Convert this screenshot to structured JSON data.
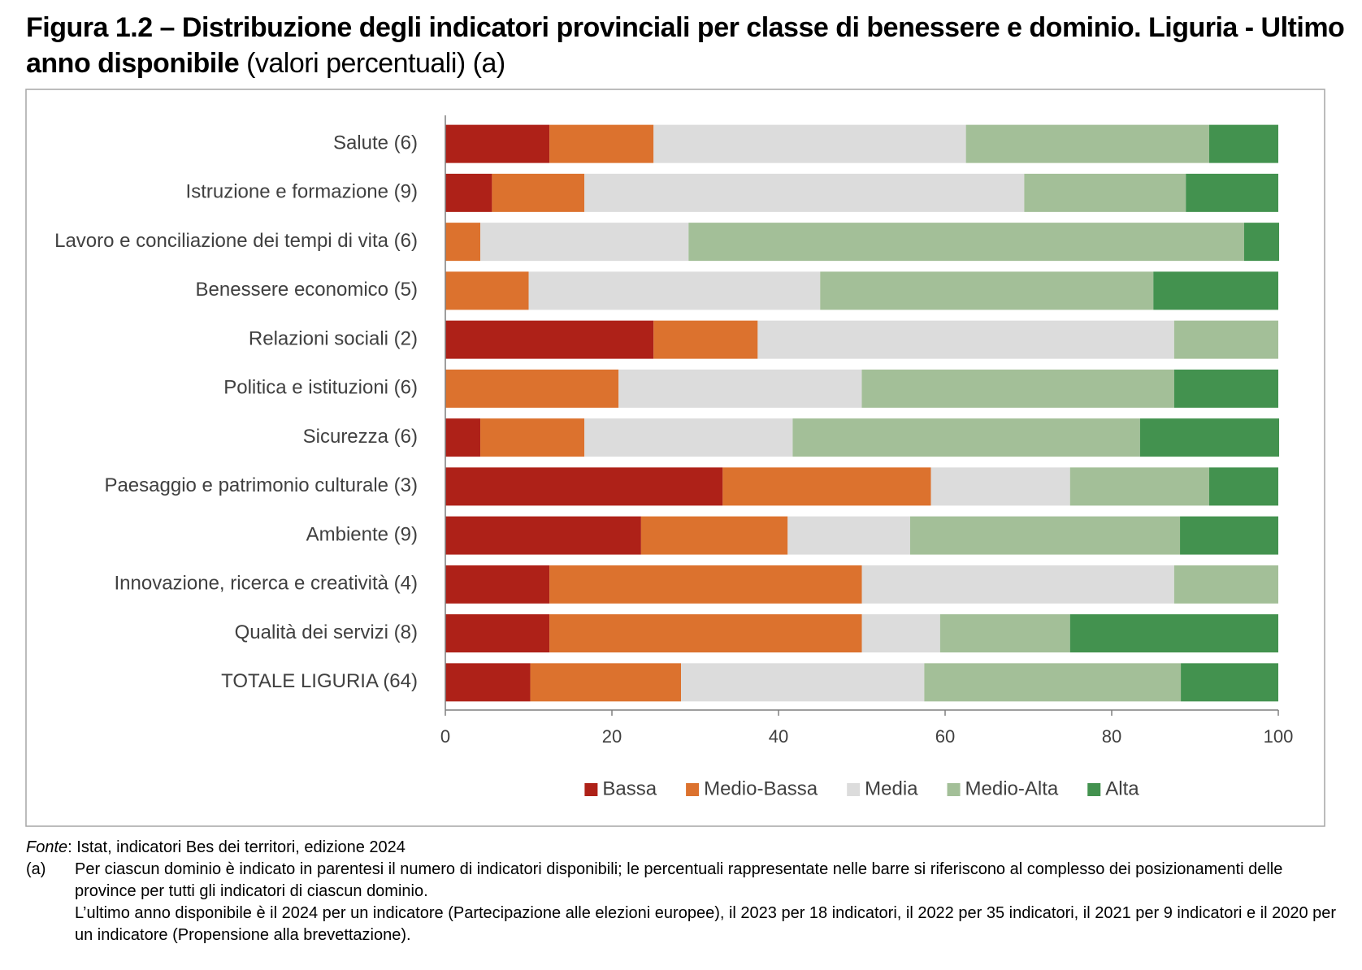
{
  "chart_data": {
    "type": "bar",
    "orientation": "horizontal",
    "stacked": true,
    "title": "Figura 1.2 – Distribuzione degli indicatori provinciali per classe di benessere e dominio. Liguria - Ultimo anno disponibile",
    "subtitle": "(valori percentuali) (a)",
    "categories": [
      "Salute (6)",
      "Istruzione e formazione (9)",
      "Lavoro e conciliazione dei tempi di vita (6)",
      "Benessere economico (5)",
      "Relazioni sociali (2)",
      "Politica e istituzioni (6)",
      "Sicurezza (6)",
      "Paesaggio e patrimonio culturale (3)",
      "Ambiente (9)",
      "Innovazione, ricerca e creatività (4)",
      "Qualità dei servizi (8)",
      "TOTALE LIGURIA (64)"
    ],
    "series": [
      {
        "name": "Bassa",
        "color": "#ae2118",
        "values": [
          12.5,
          5.6,
          0,
          0,
          25,
          0,
          4.2,
          33.3,
          23.5,
          12.5,
          12.5,
          10.2
        ]
      },
      {
        "name": "Medio-Bassa",
        "color": "#dc722e",
        "values": [
          12.5,
          11.1,
          4.2,
          10,
          12.5,
          20.8,
          12.5,
          25,
          17.6,
          37.5,
          37.5,
          18.1
        ]
      },
      {
        "name": "Media",
        "color": "#dcdcdc",
        "values": [
          37.5,
          52.8,
          25,
          35,
          50,
          29.2,
          25,
          16.7,
          14.7,
          37.5,
          9.4,
          29.2
        ]
      },
      {
        "name": "Medio-Alta",
        "color": "#a3bf98",
        "values": [
          29.2,
          19.4,
          66.7,
          40,
          12.5,
          37.5,
          41.7,
          16.7,
          32.4,
          12.5,
          15.6,
          30.8
        ]
      },
      {
        "name": "Alta",
        "color": "#43924f",
        "values": [
          8.3,
          11.1,
          4.2,
          15,
          0,
          12.5,
          16.7,
          8.3,
          11.8,
          0,
          25,
          11.7
        ]
      }
    ],
    "xlim": [
      0,
      100
    ],
    "xticks": [
      0,
      20,
      40,
      60,
      80,
      100
    ],
    "grid": false,
    "legend": "bottom"
  },
  "footer": {
    "source_label": "Fonte",
    "source_text": ": Istat, indicatori Bes dei territori, edizione 2024",
    "note_marker": "(a)",
    "note_paragraphs": [
      "Per ciascun dominio è indicato in parentesi il numero di indicatori disponibili; le percentuali rappresentate nelle barre si riferiscono al complesso dei posizionamenti delle province per tutti gli indicatori di ciascun dominio.",
      "L’ultimo anno disponibile è il 2024 per un indicatore (Partecipazione alle elezioni europee), il 2023 per 18 indicatori, il 2022 per 35 indicatori, il 2021 per 9 indicatori e il 2020 per un indicatore (Propensione alla brevettazione)."
    ]
  }
}
